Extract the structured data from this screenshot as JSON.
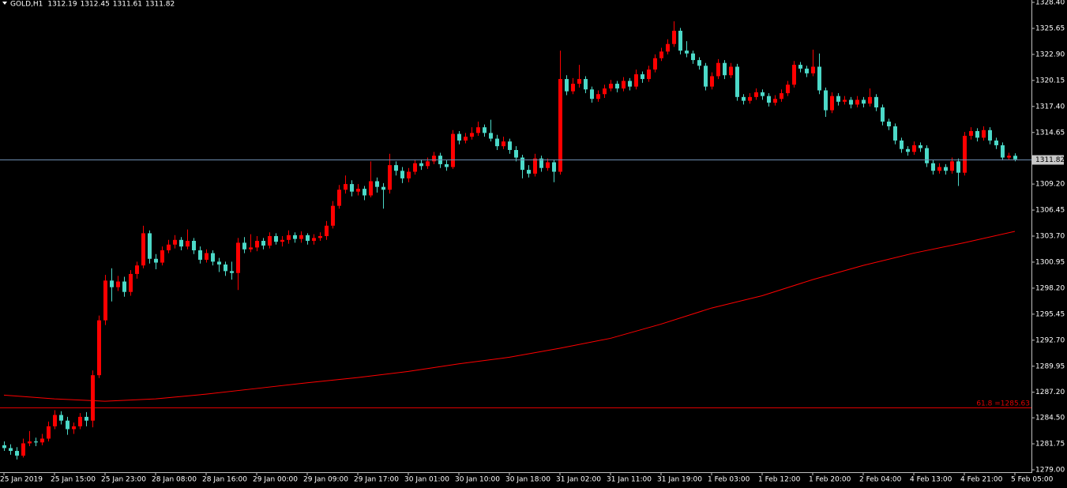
{
  "chart_data": {
    "type": "candlestick",
    "symbol": "GOLD,H1",
    "up_color": "#ff0000",
    "down_color": "#4cd9c8",
    "ylim": [
      1278.75,
      1328.65
    ],
    "yticks": [
      {
        "value": 1279.0,
        "label": "1279.00"
      },
      1281.75,
      {
        "value": 1284.5,
        "label": "1284.50"
      },
      {
        "value": 1287.2,
        "label": "1287.20"
      },
      1289.95,
      {
        "value": 1292.7,
        "label": "1292.70"
      },
      1295.45,
      {
        "value": 1298.2,
        "label": "1298.20"
      },
      1300.95,
      {
        "value": 1303.7,
        "label": "1303.70"
      },
      1306.45,
      {
        "value": 1309.2,
        "label": "1309.20"
      },
      1314.65,
      {
        "value": 1317.4,
        "label": "1317.40"
      },
      1320.15,
      {
        "value": 1322.9,
        "label": "1322.90"
      },
      1325.65,
      {
        "value": 1328.4,
        "label": "1328.40"
      }
    ],
    "categories": [
      "25 Jan 2019",
      null,
      null,
      null,
      null,
      null,
      null,
      null,
      "25 Jan 15:00",
      null,
      null,
      null,
      null,
      null,
      null,
      null,
      "25 Jan 23:00",
      null,
      null,
      null,
      null,
      null,
      null,
      null,
      "28 Jan 08:00",
      null,
      null,
      null,
      null,
      null,
      null,
      null,
      "28 Jan 16:00",
      null,
      null,
      null,
      null,
      null,
      null,
      null,
      "29 Jan 00:00",
      null,
      null,
      null,
      null,
      null,
      null,
      null,
      "29 Jan 09:00",
      null,
      null,
      null,
      null,
      null,
      null,
      null,
      "29 Jan 17:00",
      null,
      null,
      null,
      null,
      null,
      null,
      null,
      "30 Jan 01:00",
      null,
      null,
      null,
      null,
      null,
      null,
      null,
      "30 Jan 10:00",
      null,
      null,
      null,
      null,
      null,
      null,
      null,
      "30 Jan 18:00",
      null,
      null,
      null,
      null,
      null,
      null,
      null,
      "31 Jan 02:00",
      null,
      null,
      null,
      null,
      null,
      null,
      null,
      "31 Jan 11:00",
      null,
      null,
      null,
      null,
      null,
      null,
      null,
      "31 Jan 19:00",
      null,
      null,
      null,
      null,
      null,
      null,
      null,
      "1 Feb 03:00",
      null,
      null,
      null,
      null,
      null,
      null,
      null,
      "1 Feb 12:00",
      null,
      null,
      null,
      null,
      null,
      null,
      null,
      "1 Feb 20:00",
      null,
      null,
      null,
      null,
      null,
      null,
      null,
      "2 Feb 04:00",
      null,
      null,
      null,
      null,
      null,
      null,
      null,
      "4 Feb 13:00",
      null,
      null,
      null,
      null,
      null,
      null,
      null,
      "4 Feb 21:00",
      null,
      null,
      null,
      null,
      null,
      null,
      null,
      "5 Feb 05:00"
    ],
    "ohlc": [
      [
        1281.6,
        1282.0,
        1281.0,
        1281.3
      ],
      [
        1281.3,
        1281.7,
        1280.6,
        1281.0
      ],
      [
        1281.0,
        1281.4,
        1280.1,
        1280.5
      ],
      [
        1280.5,
        1282.3,
        1280.3,
        1281.8
      ],
      [
        1281.8,
        1283.1,
        1281.5,
        1282.0
      ],
      [
        1282.0,
        1282.4,
        1281.5,
        1281.9
      ],
      [
        1281.9,
        1282.8,
        1281.6,
        1282.3
      ],
      [
        1282.3,
        1284.1,
        1282.0,
        1283.6
      ],
      [
        1283.6,
        1285.3,
        1283.3,
        1284.8
      ],
      [
        1284.8,
        1285.2,
        1283.8,
        1284.2
      ],
      [
        1284.2,
        1284.6,
        1282.7,
        1283.3
      ],
      [
        1283.3,
        1284.0,
        1282.8,
        1283.6
      ],
      [
        1283.6,
        1285.0,
        1283.3,
        1284.6
      ],
      [
        1284.6,
        1285.1,
        1283.6,
        1284.2
      ],
      [
        1284.2,
        1289.5,
        1283.5,
        1289.0
      ],
      [
        1289.0,
        1295.3,
        1288.7,
        1294.8
      ],
      [
        1294.8,
        1299.6,
        1294.3,
        1299.0
      ],
      [
        1299.0,
        1300.3,
        1296.8,
        1298.3
      ],
      [
        1298.3,
        1299.5,
        1297.9,
        1298.9
      ],
      [
        1298.9,
        1299.4,
        1297.3,
        1297.8
      ],
      [
        1297.8,
        1300.1,
        1297.4,
        1299.7
      ],
      [
        1299.7,
        1301.0,
        1299.2,
        1300.6
      ],
      [
        1300.6,
        1304.8,
        1300.3,
        1304.0
      ],
      [
        1304.0,
        1304.3,
        1300.8,
        1301.3
      ],
      [
        1301.3,
        1301.8,
        1300.2,
        1300.9
      ],
      [
        1300.9,
        1302.6,
        1300.6,
        1302.2
      ],
      [
        1302.2,
        1303.3,
        1301.9,
        1302.8
      ],
      [
        1302.8,
        1303.8,
        1302.4,
        1303.3
      ],
      [
        1303.3,
        1303.6,
        1302.2,
        1302.6
      ],
      [
        1302.6,
        1304.4,
        1302.3,
        1303.2
      ],
      [
        1303.2,
        1303.5,
        1301.8,
        1302.2
      ],
      [
        1302.2,
        1302.6,
        1300.8,
        1301.2
      ],
      [
        1301.2,
        1302.3,
        1300.9,
        1301.9
      ],
      [
        1301.9,
        1302.2,
        1300.6,
        1301.0
      ],
      [
        1301.0,
        1301.4,
        1299.9,
        1300.7
      ],
      [
        1300.7,
        1301.0,
        1299.5,
        1300.0
      ],
      [
        1300.0,
        1301.0,
        1299.1,
        1299.8
      ],
      [
        1299.8,
        1303.5,
        1298.0,
        1303.0
      ],
      [
        1303.0,
        1303.6,
        1301.9,
        1302.3
      ],
      [
        1302.3,
        1303.9,
        1302.0,
        1302.5
      ],
      [
        1302.5,
        1303.7,
        1302.1,
        1303.2
      ],
      [
        1303.2,
        1303.5,
        1302.3,
        1302.7
      ],
      [
        1302.7,
        1304.1,
        1302.4,
        1303.7
      ],
      [
        1303.7,
        1304.0,
        1302.8,
        1303.1
      ],
      [
        1303.1,
        1303.7,
        1302.6,
        1303.3
      ],
      [
        1303.3,
        1304.3,
        1302.9,
        1303.8
      ],
      [
        1303.8,
        1304.1,
        1303.0,
        1303.4
      ],
      [
        1303.4,
        1304.2,
        1303.0,
        1303.8
      ],
      [
        1303.8,
        1304.0,
        1302.8,
        1303.2
      ],
      [
        1303.2,
        1303.9,
        1302.8,
        1303.5
      ],
      [
        1303.5,
        1304.1,
        1303.2,
        1303.7
      ],
      [
        1303.7,
        1305.3,
        1303.3,
        1304.8
      ],
      [
        1304.8,
        1307.4,
        1304.5,
        1306.9
      ],
      [
        1306.9,
        1309.1,
        1306.6,
        1308.6
      ],
      [
        1308.6,
        1310.1,
        1308.2,
        1309.2
      ],
      [
        1309.2,
        1309.6,
        1307.9,
        1308.4
      ],
      [
        1308.4,
        1309.2,
        1308.0,
        1308.7
      ],
      [
        1308.7,
        1309.0,
        1307.5,
        1308.0
      ],
      [
        1308.0,
        1311.6,
        1307.8,
        1309.5
      ],
      [
        1309.5,
        1309.9,
        1308.3,
        1308.9
      ],
      [
        1308.9,
        1309.3,
        1306.6,
        1308.6
      ],
      [
        1308.6,
        1312.4,
        1308.2,
        1311.2
      ],
      [
        1311.2,
        1311.6,
        1310.1,
        1310.6
      ],
      [
        1310.6,
        1311.0,
        1309.3,
        1309.8
      ],
      [
        1309.8,
        1310.9,
        1309.4,
        1310.5
      ],
      [
        1310.5,
        1311.8,
        1310.2,
        1311.4
      ],
      [
        1311.4,
        1311.8,
        1310.7,
        1311.1
      ],
      [
        1311.1,
        1312.0,
        1310.8,
        1311.6
      ],
      [
        1311.6,
        1312.6,
        1311.3,
        1312.2
      ],
      [
        1312.2,
        1312.5,
        1310.9,
        1311.3
      ],
      [
        1311.3,
        1311.7,
        1310.6,
        1311.0
      ],
      [
        1311.0,
        1314.9,
        1310.8,
        1314.5
      ],
      [
        1314.5,
        1314.8,
        1313.4,
        1313.8
      ],
      [
        1313.8,
        1314.6,
        1313.5,
        1314.2
      ],
      [
        1314.2,
        1315.2,
        1313.9,
        1314.6
      ],
      [
        1314.6,
        1315.8,
        1314.3,
        1315.2
      ],
      [
        1315.2,
        1315.5,
        1314.2,
        1314.6
      ],
      [
        1314.6,
        1316.0,
        1313.7,
        1314.0
      ],
      [
        1314.0,
        1314.4,
        1312.8,
        1313.2
      ],
      [
        1313.2,
        1314.2,
        1312.9,
        1313.7
      ],
      [
        1313.7,
        1314.0,
        1312.4,
        1312.8
      ],
      [
        1312.8,
        1313.2,
        1311.6,
        1312.0
      ],
      [
        1312.0,
        1312.3,
        1309.8,
        1310.7
      ],
      [
        1310.7,
        1311.2,
        1309.9,
        1310.3
      ],
      [
        1310.3,
        1312.4,
        1310.0,
        1311.9
      ],
      [
        1311.9,
        1312.2,
        1310.5,
        1310.9
      ],
      [
        1310.9,
        1311.9,
        1310.6,
        1311.5
      ],
      [
        1311.5,
        1311.8,
        1309.4,
        1310.5
      ],
      [
        1310.5,
        1323.3,
        1310.2,
        1320.3
      ],
      [
        1320.3,
        1320.7,
        1318.6,
        1319.0
      ],
      [
        1319.0,
        1320.4,
        1318.7,
        1319.8
      ],
      [
        1319.8,
        1321.8,
        1319.4,
        1320.3
      ],
      [
        1320.3,
        1320.6,
        1318.8,
        1319.2
      ],
      [
        1319.2,
        1319.5,
        1317.8,
        1318.2
      ],
      [
        1318.2,
        1319.1,
        1317.9,
        1318.7
      ],
      [
        1318.7,
        1319.7,
        1318.3,
        1319.3
      ],
      [
        1319.3,
        1320.2,
        1319.0,
        1319.8
      ],
      [
        1319.8,
        1320.1,
        1318.9,
        1319.3
      ],
      [
        1319.3,
        1320.5,
        1319.0,
        1320.1
      ],
      [
        1320.1,
        1320.4,
        1319.1,
        1319.5
      ],
      [
        1319.5,
        1321.3,
        1319.2,
        1320.8
      ],
      [
        1320.8,
        1321.1,
        1319.9,
        1320.3
      ],
      [
        1320.3,
        1321.7,
        1320.0,
        1321.3
      ],
      [
        1321.3,
        1322.9,
        1321.0,
        1322.5
      ],
      [
        1322.5,
        1323.6,
        1322.2,
        1323.2
      ],
      [
        1323.2,
        1324.5,
        1322.9,
        1324.0
      ],
      [
        1324.0,
        1326.4,
        1323.7,
        1325.4
      ],
      [
        1325.4,
        1325.7,
        1322.9,
        1323.3
      ],
      [
        1323.3,
        1324.3,
        1322.6,
        1323.0
      ],
      [
        1323.0,
        1323.3,
        1321.9,
        1322.3
      ],
      [
        1322.3,
        1322.6,
        1321.3,
        1321.7
      ],
      [
        1321.7,
        1322.0,
        1319.1,
        1319.5
      ],
      [
        1319.5,
        1321.0,
        1319.2,
        1320.6
      ],
      [
        1320.6,
        1322.4,
        1320.3,
        1322.0
      ],
      [
        1322.0,
        1322.3,
        1320.3,
        1320.7
      ],
      [
        1320.7,
        1322.0,
        1320.4,
        1321.6
      ],
      [
        1321.6,
        1321.9,
        1318.0,
        1318.4
      ],
      [
        1318.4,
        1318.7,
        1317.6,
        1318.0
      ],
      [
        1318.0,
        1318.8,
        1317.7,
        1318.4
      ],
      [
        1318.4,
        1319.3,
        1318.1,
        1318.9
      ],
      [
        1318.9,
        1319.2,
        1318.1,
        1318.5
      ],
      [
        1318.5,
        1318.8,
        1317.4,
        1317.8
      ],
      [
        1317.8,
        1318.6,
        1317.5,
        1318.2
      ],
      [
        1318.2,
        1319.2,
        1317.9,
        1318.8
      ],
      [
        1318.8,
        1320.1,
        1318.5,
        1319.7
      ],
      [
        1319.7,
        1322.2,
        1319.4,
        1321.8
      ],
      [
        1321.8,
        1322.1,
        1321.0,
        1321.4
      ],
      [
        1321.4,
        1321.7,
        1320.5,
        1320.9
      ],
      [
        1320.9,
        1323.4,
        1320.6,
        1321.6
      ],
      [
        1321.6,
        1323.0,
        1318.7,
        1319.1
      ],
      [
        1319.1,
        1319.4,
        1316.3,
        1317.0
      ],
      [
        1317.0,
        1318.9,
        1316.7,
        1318.5
      ],
      [
        1318.5,
        1318.8,
        1317.5,
        1317.9
      ],
      [
        1317.9,
        1318.5,
        1317.6,
        1318.1
      ],
      [
        1318.1,
        1318.4,
        1317.2,
        1317.6
      ],
      [
        1317.6,
        1318.5,
        1317.3,
        1318.1
      ],
      [
        1318.1,
        1318.4,
        1317.3,
        1317.7
      ],
      [
        1317.7,
        1319.3,
        1317.4,
        1318.4
      ],
      [
        1318.4,
        1318.7,
        1316.9,
        1317.3
      ],
      [
        1317.3,
        1317.6,
        1315.4,
        1315.8
      ],
      [
        1315.8,
        1316.1,
        1314.9,
        1315.3
      ],
      [
        1315.3,
        1315.6,
        1313.4,
        1313.8
      ],
      [
        1313.8,
        1314.1,
        1312.5,
        1312.9
      ],
      [
        1312.9,
        1313.2,
        1312.2,
        1312.6
      ],
      [
        1312.6,
        1313.7,
        1312.3,
        1313.3
      ],
      [
        1313.3,
        1313.6,
        1312.6,
        1313.0
      ],
      [
        1313.0,
        1313.3,
        1311.0,
        1311.4
      ],
      [
        1311.4,
        1311.7,
        1310.2,
        1310.6
      ],
      [
        1310.6,
        1311.4,
        1310.3,
        1311.0
      ],
      [
        1311.0,
        1311.3,
        1310.2,
        1310.6
      ],
      [
        1310.6,
        1312.0,
        1310.3,
        1311.6
      ],
      [
        1311.6,
        1311.9,
        1309.0,
        1310.4
      ],
      [
        1310.4,
        1314.7,
        1310.1,
        1314.3
      ],
      [
        1314.3,
        1315.2,
        1313.9,
        1314.8
      ],
      [
        1314.8,
        1315.1,
        1313.7,
        1314.1
      ],
      [
        1314.1,
        1315.3,
        1313.8,
        1314.9
      ],
      [
        1314.9,
        1315.2,
        1313.4,
        1313.8
      ],
      [
        1313.8,
        1314.1,
        1312.9,
        1313.3
      ],
      [
        1313.3,
        1313.6,
        1311.7,
        1312.0
      ],
      [
        1312.0,
        1312.5,
        1311.8,
        1312.19
      ],
      [
        1312.19,
        1312.45,
        1311.61,
        1311.82
      ]
    ],
    "ma": {
      "color": "#ff0000",
      "x": [
        0,
        8,
        16,
        24,
        32,
        40,
        48,
        56,
        64,
        72,
        80,
        88,
        96,
        104,
        112,
        120,
        128,
        136,
        144,
        152,
        160
      ],
      "values": [
        1286.9,
        1286.5,
        1286.25,
        1286.5,
        1287.0,
        1287.6,
        1288.2,
        1288.75,
        1289.4,
        1290.2,
        1290.9,
        1291.85,
        1292.9,
        1294.4,
        1296.1,
        1297.4,
        1299.1,
        1300.6,
        1301.9,
        1303.0,
        1304.2
      ]
    },
    "fib_label": "61.8 =",
    "fib_level": 1285.63,
    "fib_color": "#e00000",
    "price_line_color": "#6d8db0"
  }
}
